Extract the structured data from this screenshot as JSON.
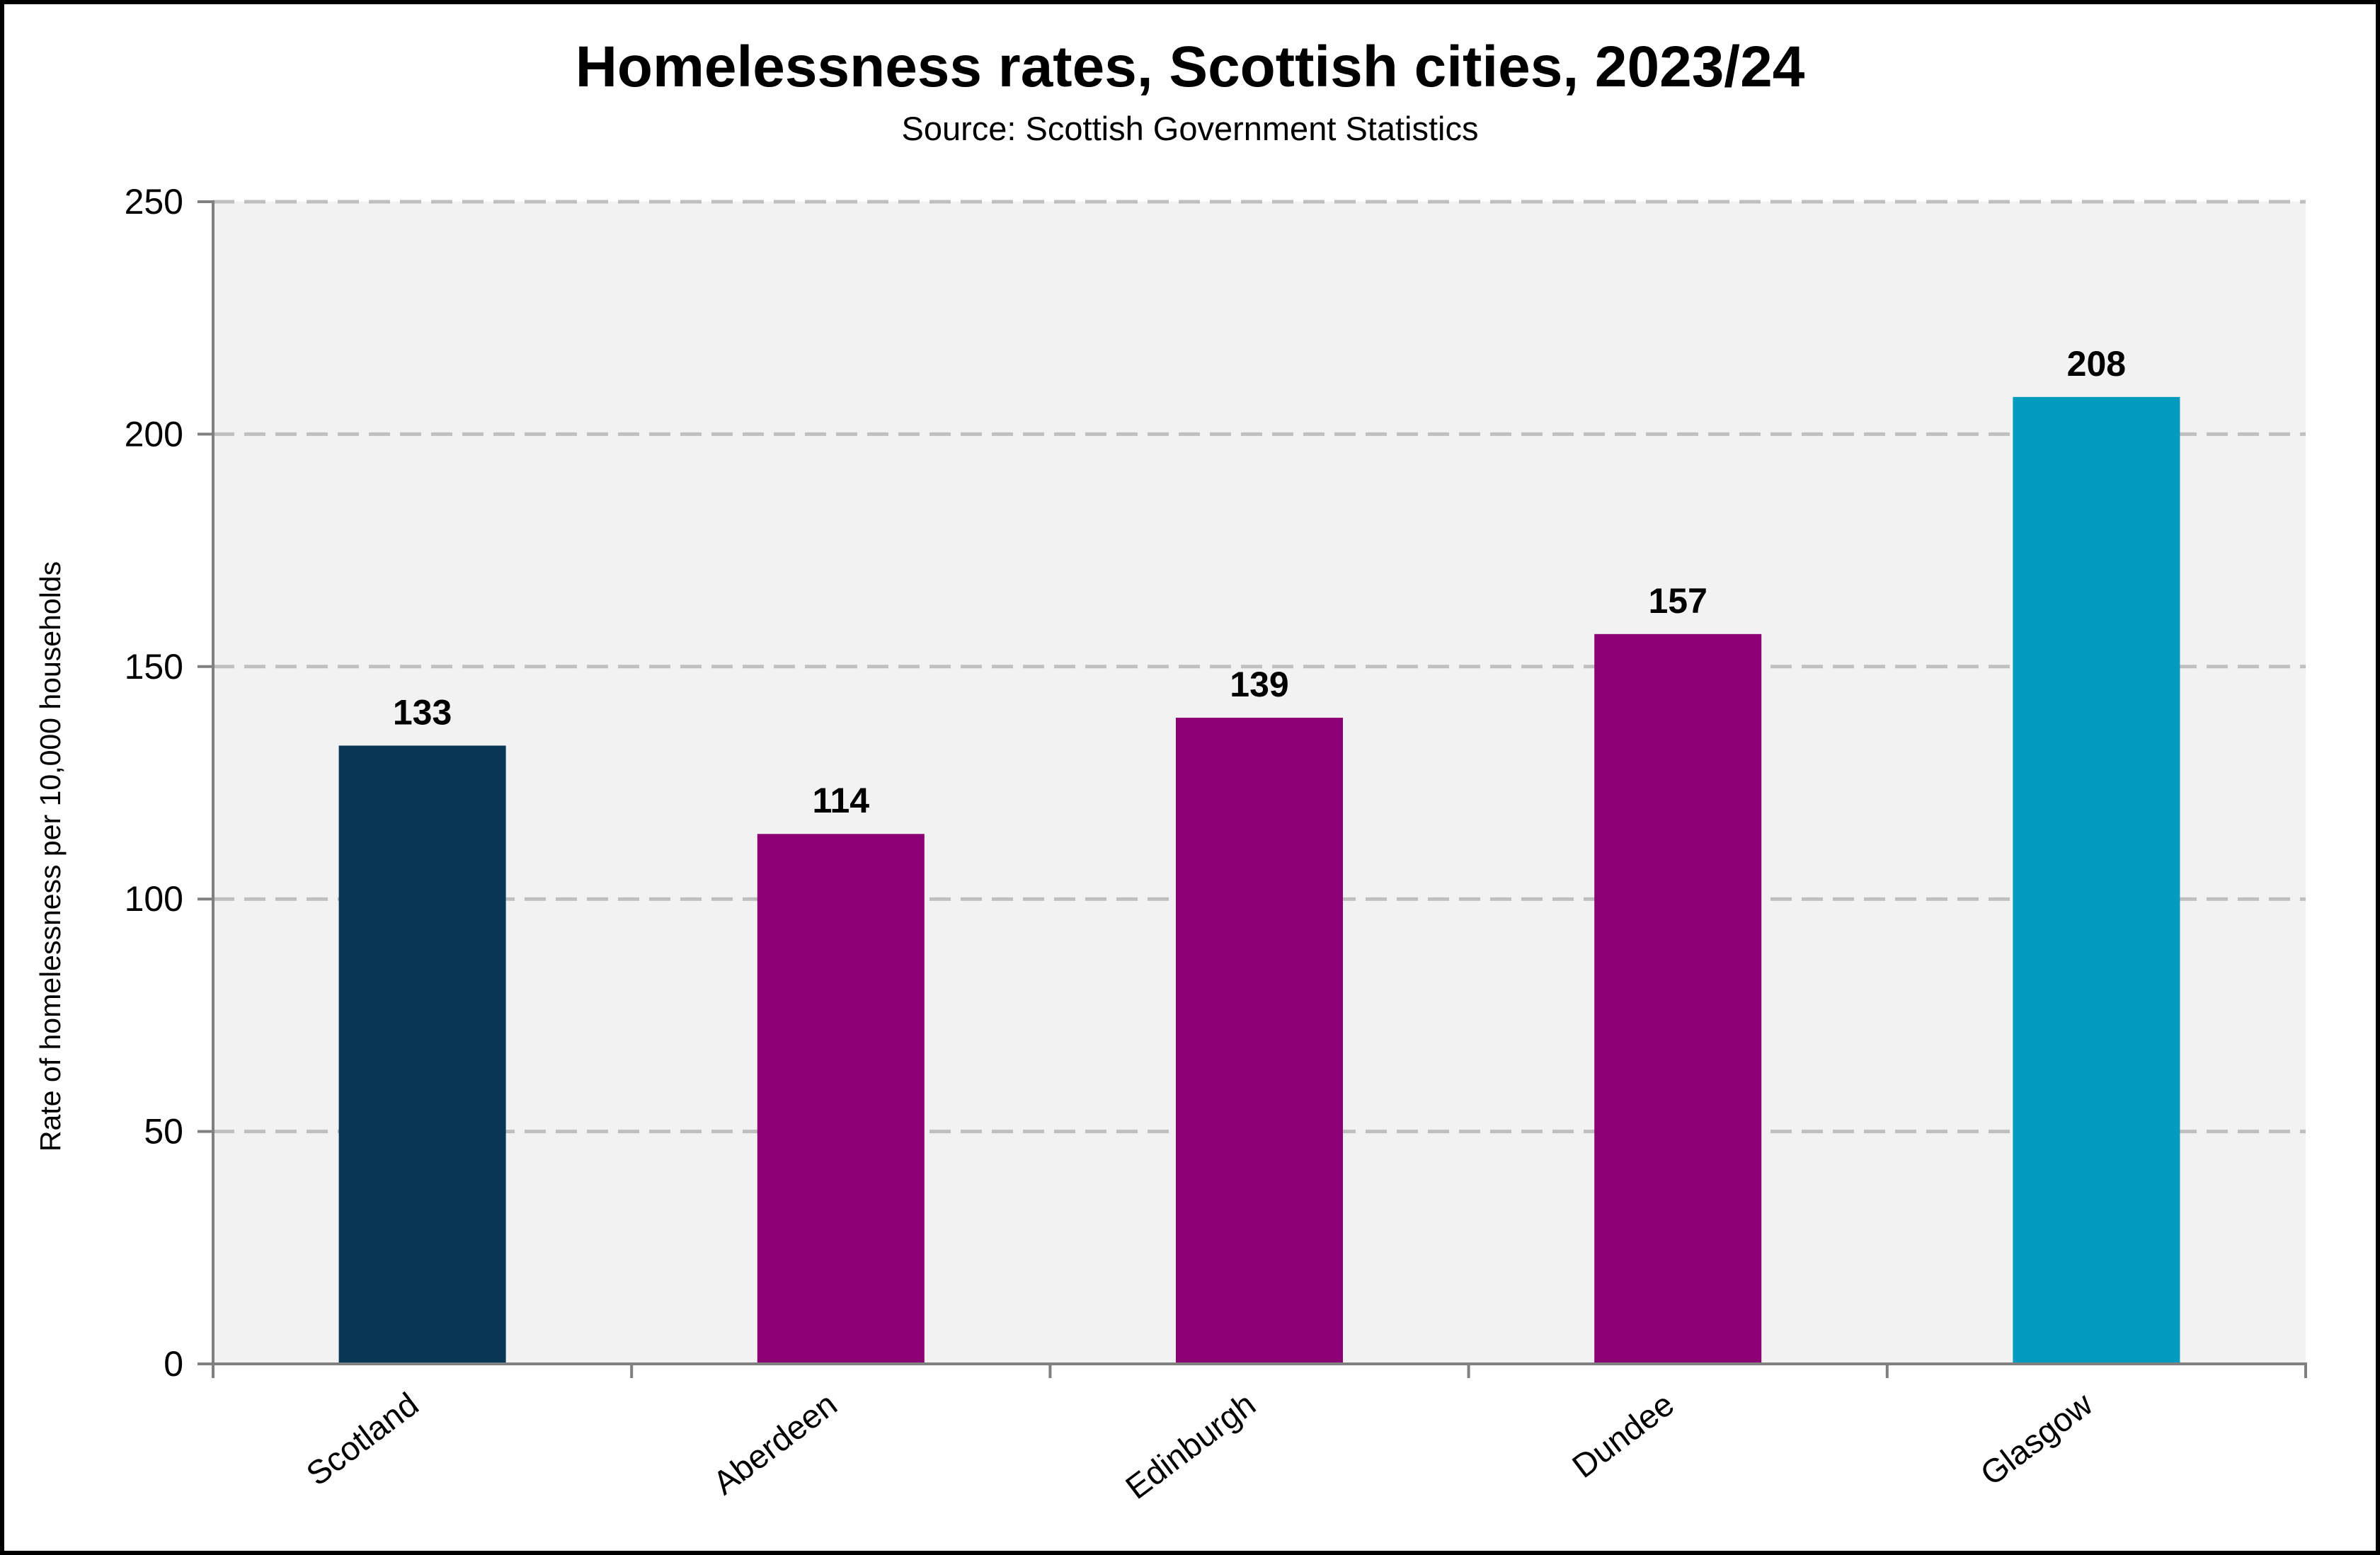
{
  "chart_data": {
    "type": "bar",
    "title": "Homelessness rates, Scottish cities, 2023/24",
    "subtitle": "Source: Scottish Government Statistics",
    "xlabel": "",
    "ylabel": "Rate of homelessness per 10,000 households",
    "categories": [
      "Scotland",
      "Aberdeen",
      "Edinburgh",
      "Dundee",
      "Glasgow"
    ],
    "values": [
      133,
      114,
      139,
      157,
      208
    ],
    "data_labels": [
      "133",
      "114",
      "139",
      "157",
      "208"
    ],
    "bar_colors": [
      "#083756",
      "#8c0074",
      "#8c0074",
      "#8c0074",
      "#009bbf"
    ],
    "ylim": [
      0,
      250
    ],
    "yticks": [
      0,
      50,
      100,
      150,
      200,
      250
    ],
    "grid": true,
    "legend": "none",
    "plot_background": "#f2f2f2",
    "gridline_color": "#bfbfbf",
    "axis_color": "#808080"
  }
}
